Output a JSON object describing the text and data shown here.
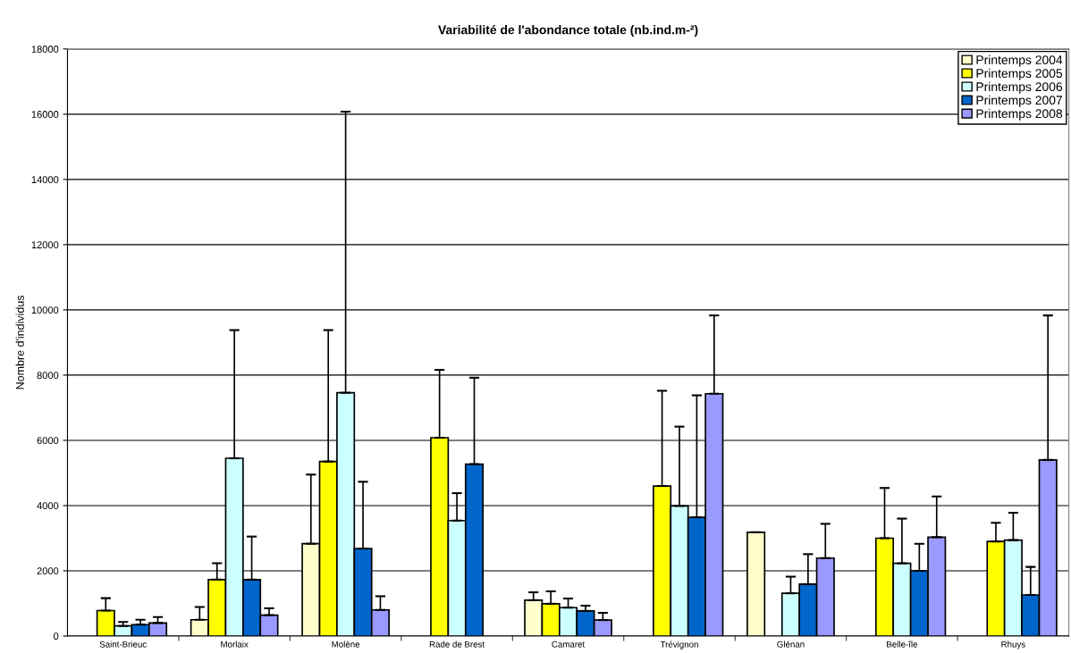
{
  "chart_data": {
    "type": "bar",
    "title": "Variabilité de l'abondance totale (nb.ind.m-²)",
    "ylabel": "Nombre d'individus",
    "categories": [
      "Saint-Brieuc",
      "Morlaix",
      "Molène",
      "Rade de Brest",
      "Camaret",
      "Trévignon",
      "Glénan",
      "Belle-île",
      "Rhuys"
    ],
    "ylim": [
      0,
      18000
    ],
    "yticks": [
      0,
      2000,
      4000,
      6000,
      8000,
      10000,
      12000,
      14000,
      16000,
      18000
    ],
    "grid": "y",
    "legend": "top right",
    "series": [
      {
        "name": "Printemps 2004",
        "color": "#ffffcc",
        "values": [
          null,
          500,
          2830,
          null,
          1100,
          null,
          3180,
          null,
          null
        ],
        "errors": [
          null,
          [
            500,
            890
          ],
          [
            2830,
            4950
          ],
          null,
          [
            1100,
            1340
          ],
          null,
          [
            3180,
            3180
          ],
          null,
          null
        ]
      },
      {
        "name": "Printemps 2005",
        "color": "#ffff00",
        "values": [
          780,
          1730,
          5350,
          6080,
          990,
          4600,
          null,
          3000,
          2900
        ],
        "errors": [
          [
            780,
            1160
          ],
          [
            1730,
            2230
          ],
          [
            5350,
            9380
          ],
          [
            6080,
            8160
          ],
          [
            990,
            1370
          ],
          [
            4600,
            7520
          ],
          null,
          [
            3000,
            4540
          ],
          [
            2900,
            3470
          ]
        ]
      },
      {
        "name": "Printemps 2006",
        "color": "#ccffff",
        "values": [
          310,
          5450,
          7460,
          3540,
          870,
          3990,
          1310,
          2230,
          2940
        ],
        "errors": [
          [
            310,
            430
          ],
          [
            5450,
            9380
          ],
          [
            7460,
            16080
          ],
          [
            3540,
            4380
          ],
          [
            870,
            1150
          ],
          [
            3990,
            6420
          ],
          [
            1310,
            1820
          ],
          [
            2230,
            3600
          ],
          [
            2940,
            3780
          ]
        ]
      },
      {
        "name": "Printemps 2007",
        "color": "#0066cc",
        "values": [
          350,
          1730,
          2680,
          5270,
          770,
          3640,
          1590,
          2000,
          1260
        ],
        "errors": [
          [
            350,
            500
          ],
          [
            1730,
            3050
          ],
          [
            2680,
            4730
          ],
          [
            5270,
            7920
          ],
          [
            770,
            930
          ],
          [
            3640,
            7380
          ],
          [
            1590,
            2510
          ],
          [
            2000,
            2830
          ],
          [
            1260,
            2120
          ]
        ]
      },
      {
        "name": "Printemps 2008",
        "color": "#9999ff",
        "values": [
          400,
          640,
          800,
          null,
          490,
          7430,
          2390,
          3030,
          5400
        ],
        "errors": [
          [
            400,
            580
          ],
          [
            640,
            850
          ],
          [
            800,
            1220
          ],
          null,
          [
            490,
            710
          ],
          [
            7430,
            9830
          ],
          [
            2390,
            3440
          ],
          [
            3030,
            4280
          ],
          [
            5400,
            9830
          ]
        ]
      }
    ]
  }
}
